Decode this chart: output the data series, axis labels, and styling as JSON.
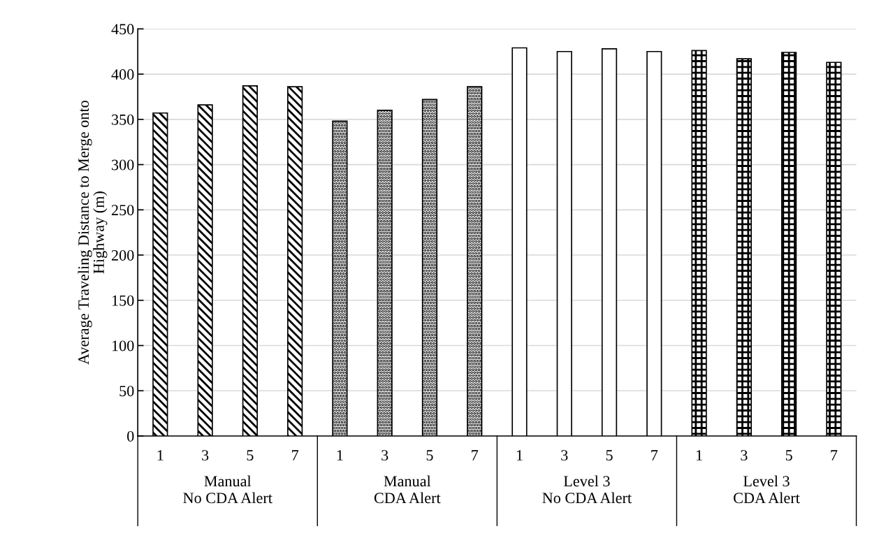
{
  "chart_data": {
    "type": "bar",
    "ylabel": "Average Traveling Distance to Merge onto\nHighway (m)",
    "categories": [
      "1",
      "3",
      "5",
      "7",
      "1",
      "3",
      "5",
      "7",
      "1",
      "3",
      "5",
      "7",
      "1",
      "3",
      "5",
      "7"
    ],
    "series": [
      {
        "name": "Manual\nNo CDA Alert",
        "color": "#000000",
        "values": [
          357,
          366,
          387,
          386,
          null,
          null,
          null,
          null,
          null,
          null,
          null,
          null,
          null,
          null,
          null,
          null
        ]
      },
      {
        "name": "Manual\nCDA Alert",
        "color": "#000000",
        "values": [
          null,
          null,
          null,
          null,
          348,
          360,
          372,
          386,
          null,
          null,
          null,
          null,
          null,
          null,
          null,
          null
        ]
      },
      {
        "name": "Level 3\nNo CDA Alert",
        "color": "#000000",
        "values": [
          null,
          null,
          null,
          null,
          null,
          null,
          null,
          null,
          429,
          425,
          428,
          425,
          null,
          null,
          null,
          null
        ]
      },
      {
        "name": "Level 3\nCDA Alert",
        "color": "#000000",
        "values": [
          null,
          null,
          null,
          null,
          null,
          null,
          null,
          null,
          null,
          null,
          null,
          null,
          426,
          417,
          424,
          413
        ]
      }
    ],
    "ylim": [
      0,
      450
    ],
    "yticks": [
      0,
      50,
      100,
      150,
      200,
      250,
      300,
      350,
      400,
      450
    ],
    "grid": "y",
    "legend": false
  }
}
